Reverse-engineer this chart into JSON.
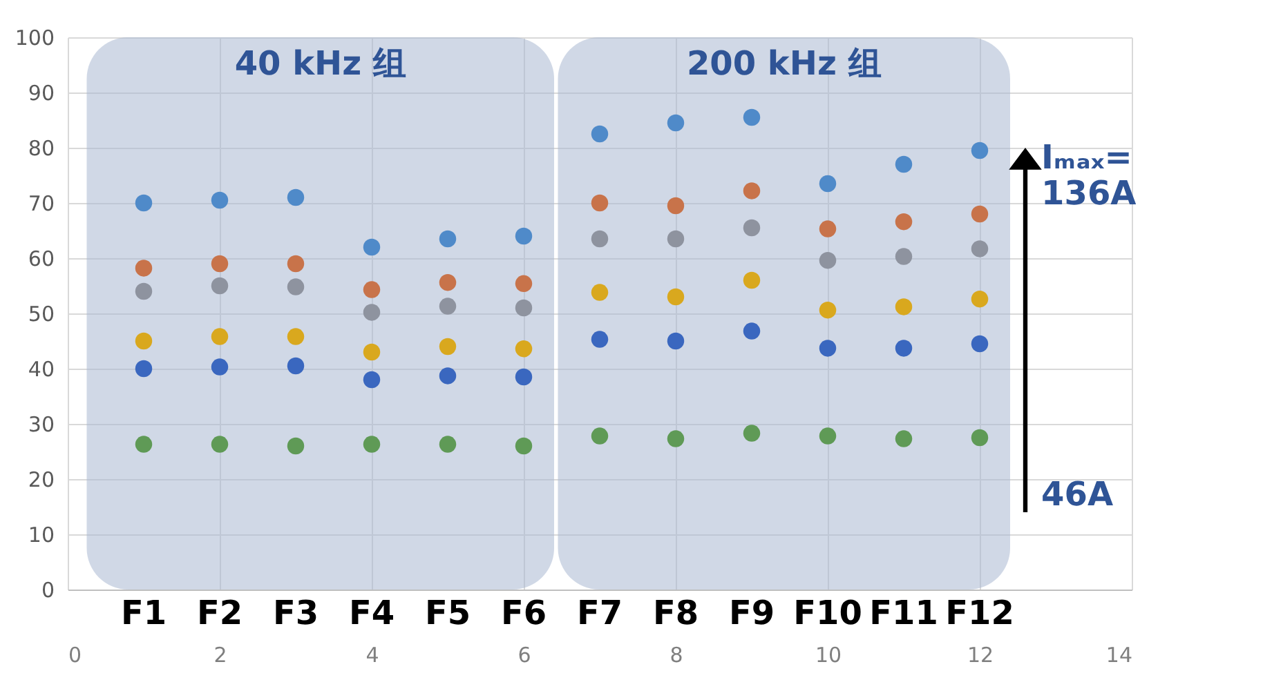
{
  "chart_data": {
    "type": "scatter",
    "x": [
      1,
      2,
      3,
      4,
      5,
      6,
      7,
      8,
      9,
      10,
      11,
      12
    ],
    "series": [
      {
        "color": "#4f8ac9",
        "values": [
          70,
          70.5,
          71,
          62,
          63.5,
          64,
          82.5,
          84.5,
          85.5,
          73.5,
          77,
          79.5
        ]
      },
      {
        "color": "#c8734a",
        "values": [
          58.2,
          59,
          59,
          54.3,
          55.6,
          55.4,
          70,
          69.5,
          72.2,
          65.3,
          66.6,
          68
        ]
      },
      {
        "color": "#8e939f",
        "values": [
          54,
          55,
          54.8,
          50.2,
          51.3,
          51,
          63.5,
          63.5,
          65.5,
          59.6,
          60.3,
          61.7
        ]
      },
      {
        "color": "#d9a81e",
        "values": [
          45,
          45.8,
          45.8,
          43,
          44,
          43.6,
          53.8,
          53,
          56,
          50.6,
          51.2,
          52.6
        ]
      },
      {
        "color": "#3a67bf",
        "values": [
          40,
          40.3,
          40.5,
          38,
          38.7,
          38.5,
          45.3,
          45,
          46.8,
          43.7,
          43.7,
          44.5
        ]
      },
      {
        "color": "#5f9a56",
        "values": [
          26.3,
          26.3,
          26,
          26.3,
          26.3,
          26,
          27.8,
          27.3,
          28.3,
          27.8,
          27.3,
          27.5
        ]
      }
    ],
    "xlim": [
      0,
      14
    ],
    "xticks": [
      0,
      2,
      4,
      6,
      8,
      10,
      12,
      14
    ],
    "ylim": [
      0,
      100
    ],
    "yticks": [
      0,
      10,
      20,
      30,
      40,
      50,
      60,
      70,
      80,
      90,
      100
    ],
    "grid": true,
    "marker": "circle",
    "bands": [
      {
        "axis": "x",
        "from": 0.25,
        "to": 6.4,
        "label": "40 kHz 组",
        "color": "#a9b8d2"
      },
      {
        "axis": "x",
        "from": 6.45,
        "to": 12.4,
        "label": "200 kHz 组",
        "color": "#a9b8d2"
      }
    ],
    "annotations": [
      "F1",
      "F2",
      "F3",
      "F4",
      "F5",
      "F6",
      "F7",
      "F8",
      "F9",
      "F10",
      "F11",
      "F12",
      "Iₘₐₓ= 136A",
      "46A"
    ]
  }
}
